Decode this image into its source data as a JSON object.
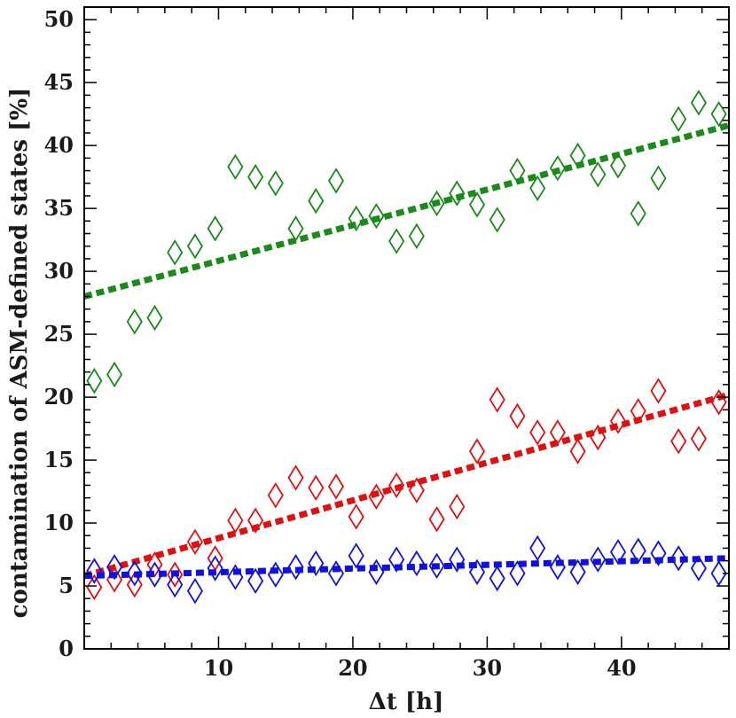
{
  "chart_data": {
    "type": "scatter",
    "title": "",
    "xlabel": "Δt [h]",
    "xlabel_var": "Δt",
    "xlabel_unit": " [h]",
    "ylabel": "contamination of ASM-defined states [%]",
    "xlim": [
      0,
      48
    ],
    "ylim": [
      0,
      51
    ],
    "xticks": [
      10,
      20,
      30,
      40
    ],
    "yticks": [
      0,
      5,
      10,
      15,
      20,
      25,
      30,
      35,
      40,
      45,
      50
    ],
    "marker": "diamond (open)",
    "grid": false,
    "legend": "none",
    "series": [
      {
        "color": "#1a8a1a",
        "x": [
          0.75,
          2.25,
          3.75,
          5.25,
          6.75,
          8.25,
          9.75,
          11.25,
          12.75,
          14.25,
          15.75,
          17.25,
          18.75,
          20.25,
          21.75,
          23.25,
          24.75,
          26.25,
          27.75,
          29.25,
          30.75,
          32.25,
          33.75,
          35.25,
          36.75,
          38.25,
          39.75,
          41.25,
          42.75,
          44.25,
          45.75,
          47.25
        ],
        "y": [
          21.3,
          21.8,
          26.0,
          26.3,
          31.5,
          32.0,
          33.4,
          38.3,
          37.5,
          37.0,
          33.4,
          35.6,
          37.2,
          34.2,
          34.4,
          32.4,
          32.8,
          35.4,
          36.2,
          35.3,
          34.1,
          38.0,
          36.6,
          38.2,
          39.2,
          37.7,
          38.4,
          34.6,
          37.4,
          42.1,
          43.4,
          42.5
        ],
        "fit": {
          "type": "linear",
          "y_at_xmin": 28.0,
          "y_at_xmax": 41.6
        }
      },
      {
        "color": "#e01010",
        "x": [
          0.75,
          2.25,
          3.75,
          5.25,
          6.75,
          8.25,
          9.75,
          11.25,
          12.75,
          14.25,
          15.75,
          17.25,
          18.75,
          20.25,
          21.75,
          23.25,
          24.75,
          26.25,
          27.75,
          29.25,
          30.75,
          32.25,
          33.75,
          35.25,
          36.75,
          38.25,
          39.75,
          41.25,
          42.75,
          44.25,
          45.75,
          47.25
        ],
        "y": [
          4.9,
          5.5,
          5.1,
          6.7,
          5.9,
          8.5,
          7.2,
          10.2,
          10.2,
          12.2,
          13.6,
          12.8,
          12.9,
          10.5,
          12.1,
          13.0,
          12.6,
          10.3,
          11.3,
          15.7,
          19.8,
          18.5,
          17.2,
          17.2,
          15.7,
          16.8,
          18.1,
          18.9,
          20.5,
          16.5,
          16.7,
          19.6
        ],
        "fit": {
          "type": "linear",
          "y_at_xmin": 5.8,
          "y_at_xmax": 20.2
        }
      },
      {
        "color": "#1010e0",
        "x": [
          0.75,
          2.25,
          3.75,
          5.25,
          6.75,
          8.25,
          9.75,
          11.25,
          12.75,
          14.25,
          15.75,
          17.25,
          18.75,
          20.25,
          21.75,
          23.25,
          24.75,
          26.25,
          27.75,
          29.25,
          30.75,
          32.25,
          33.75,
          35.25,
          36.75,
          38.25,
          39.75,
          41.25,
          42.75,
          44.25,
          45.75,
          47.25
        ],
        "y": [
          6.2,
          6.5,
          6.0,
          5.9,
          5.1,
          4.6,
          6.4,
          5.7,
          5.4,
          5.9,
          6.5,
          6.8,
          6.0,
          7.4,
          6.1,
          7.1,
          6.8,
          6.6,
          7.1,
          6.1,
          5.6,
          6.0,
          8.0,
          6.5,
          6.1,
          7.1,
          7.7,
          7.8,
          7.6,
          7.2,
          6.4,
          6.0
        ],
        "fit": {
          "type": "linear",
          "y_at_xmin": 5.8,
          "y_at_xmax": 7.2
        }
      }
    ]
  }
}
